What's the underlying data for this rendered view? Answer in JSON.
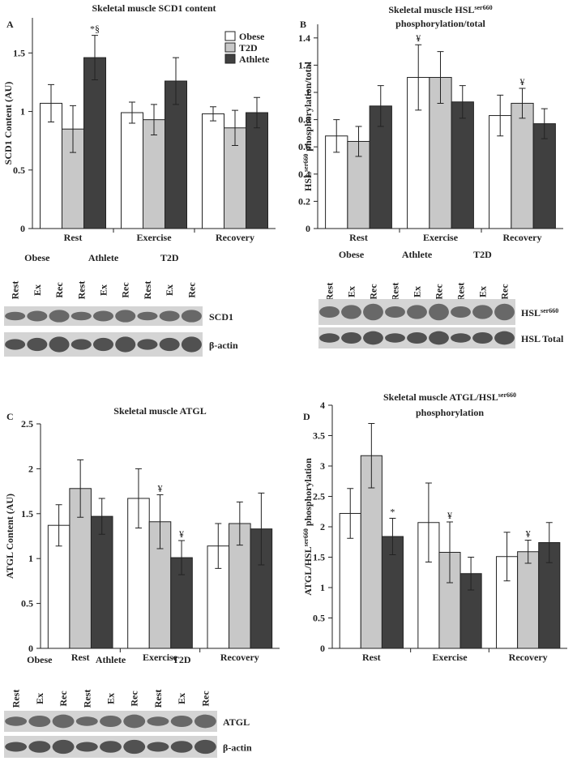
{
  "chart_data": [
    {
      "type": "bar",
      "panel": "A",
      "title": [
        [
          {
            "text": "Skeletal muscle SCD1 content"
          }
        ]
      ],
      "ylabel": [
        {
          "text": "SCD1 Content (AU)"
        }
      ],
      "categories": [
        "Rest",
        "Exercise",
        "Recovery"
      ],
      "series": [
        {
          "name": "Obese",
          "color": "#ffffff",
          "values": [
            1.07,
            0.99,
            0.98
          ],
          "errors": [
            0.16,
            0.09,
            0.06
          ],
          "markers": [
            null,
            null,
            null
          ]
        },
        {
          "name": "T2D",
          "color": "#c8c8c8",
          "values": [
            0.85,
            0.93,
            0.86
          ],
          "errors": [
            0.2,
            0.13,
            0.15
          ],
          "markers": [
            null,
            null,
            null
          ]
        },
        {
          "name": "Athlete",
          "color": "#404040",
          "values": [
            1.46,
            1.26,
            0.99
          ],
          "errors": [
            0.19,
            0.2,
            0.13
          ],
          "markers": [
            "*§",
            null,
            null
          ]
        }
      ],
      "ylim": [
        0,
        1.8
      ],
      "yticks": [
        0,
        0.5,
        1,
        1.5
      ],
      "legend": "top-right",
      "blot": {
        "groups": [
          "Obese",
          "Athlete",
          "T2D"
        ],
        "lanes": [
          "Rest",
          "Ex",
          "Rec",
          "Rest",
          "Ex",
          "Rec",
          "Rest",
          "Ex",
          "Rec"
        ],
        "bands": [
          [
            {
              "text": "SCD1"
            }
          ],
          [
            {
              "text": "β-actin"
            }
          ]
        ]
      }
    },
    {
      "type": "bar",
      "panel": "B",
      "title": [
        [
          {
            "text": "Skeletal muscle HSL"
          },
          {
            "sup": "ser660"
          }
        ],
        [
          {
            "text": "phosphorylation/total"
          }
        ]
      ],
      "ylabel": [
        {
          "text": "HSL"
        },
        {
          "sup": "ser660"
        },
        {
          "text": " phosphorylation/total"
        }
      ],
      "categories": [
        "Rest",
        "Exercise",
        "Recovery"
      ],
      "series": [
        {
          "name": "Obese",
          "color": "#ffffff",
          "values": [
            0.68,
            1.11,
            0.83
          ],
          "errors": [
            0.12,
            0.24,
            0.15
          ],
          "markers": [
            null,
            "¥",
            null
          ]
        },
        {
          "name": "T2D",
          "color": "#c8c8c8",
          "values": [
            0.64,
            1.11,
            0.92
          ],
          "errors": [
            0.11,
            0.19,
            0.11
          ],
          "markers": [
            null,
            null,
            "¥"
          ]
        },
        {
          "name": "Athlete",
          "color": "#404040",
          "values": [
            0.9,
            0.93,
            0.77
          ],
          "errors": [
            0.15,
            0.12,
            0.11
          ],
          "markers": [
            null,
            null,
            null
          ]
        }
      ],
      "ylim": [
        0,
        1.5
      ],
      "yticks": [
        0,
        0.2,
        0.4,
        0.6,
        0.8,
        1,
        1.2,
        1.4
      ],
      "blot": {
        "groups": [
          "Obese",
          "Athlete",
          "T2D"
        ],
        "lanes": [
          "Rest",
          "Ex",
          "Rec",
          "Rest",
          "Ex",
          "Rec",
          "Rest",
          "Ex",
          "Rec"
        ],
        "bands": [
          [
            {
              "text": "HSL"
            },
            {
              "sup": "ser660"
            }
          ],
          [
            {
              "text": "HSL Total"
            }
          ]
        ]
      }
    },
    {
      "type": "bar",
      "panel": "C",
      "title": [
        [
          {
            "text": "Skeletal muscle ATGL"
          }
        ]
      ],
      "ylabel": [
        {
          "text": "ATGL Content (AU)"
        }
      ],
      "categories": [
        "Rest",
        "Exercise",
        "Recovery"
      ],
      "series": [
        {
          "name": "Obese",
          "color": "#ffffff",
          "values": [
            1.37,
            1.67,
            1.14
          ],
          "errors": [
            0.23,
            0.33,
            0.25
          ],
          "markers": [
            null,
            null,
            null
          ]
        },
        {
          "name": "T2D",
          "color": "#c8c8c8",
          "values": [
            1.78,
            1.41,
            1.39
          ],
          "errors": [
            0.32,
            0.3,
            0.24
          ],
          "markers": [
            null,
            "¥",
            null
          ]
        },
        {
          "name": "Athlete",
          "color": "#404040",
          "values": [
            1.47,
            1.01,
            1.33
          ],
          "errors": [
            0.2,
            0.19,
            0.4
          ],
          "markers": [
            null,
            "¥",
            null
          ]
        }
      ],
      "ylim": [
        0,
        2.5
      ],
      "yticks": [
        0,
        0.5,
        1,
        1.5,
        2,
        2.5
      ],
      "blot": {
        "groups": [
          "Obese",
          "Athlete",
          "T2D"
        ],
        "lanes": [
          "Rest",
          "Ex",
          "Rec",
          "Rest",
          "Ex",
          "Rec",
          "Rest",
          "Ex",
          "Rec"
        ],
        "bands": [
          [
            {
              "text": "ATGL"
            }
          ],
          [
            {
              "text": "β-actin"
            }
          ]
        ]
      }
    },
    {
      "type": "bar",
      "panel": "D",
      "title": [
        [
          {
            "text": "Skeletal muscle ATGL/HSL"
          },
          {
            "sup": "ser660"
          }
        ],
        [
          {
            "text": "phosphorylation"
          }
        ]
      ],
      "ylabel": [
        {
          "text": "ATGL/HSL"
        },
        {
          "sup": "ser660"
        },
        {
          "text": " phosphorylation"
        }
      ],
      "categories": [
        "Rest",
        "Exercise",
        "Recovery"
      ],
      "series": [
        {
          "name": "Obese",
          "color": "#ffffff",
          "values": [
            2.22,
            2.07,
            1.51
          ],
          "errors": [
            0.41,
            0.65,
            0.4
          ],
          "markers": [
            null,
            null,
            null
          ]
        },
        {
          "name": "T2D",
          "color": "#c8c8c8",
          "values": [
            3.17,
            1.58,
            1.59
          ],
          "errors": [
            0.53,
            0.5,
            0.19
          ],
          "markers": [
            null,
            "¥",
            "¥"
          ]
        },
        {
          "name": "Athlete",
          "color": "#404040",
          "values": [
            1.84,
            1.23,
            1.74
          ],
          "errors": [
            0.3,
            0.27,
            0.33
          ],
          "markers": [
            "*",
            null,
            null
          ]
        }
      ],
      "ylim": [
        0,
        4
      ],
      "yticks": [
        0,
        0.5,
        1,
        1.5,
        2,
        2.5,
        3,
        3.5,
        4
      ]
    }
  ]
}
